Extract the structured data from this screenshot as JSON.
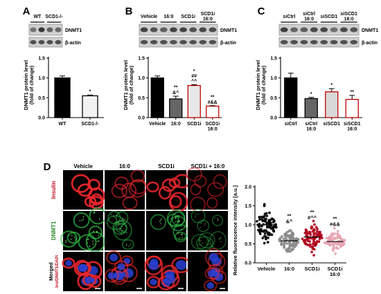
{
  "panels": {
    "A": {
      "letter": "A",
      "blot": {
        "headers": [
          "WT",
          "SCD1-/-"
        ],
        "labels": [
          "DNMT1",
          "β-actin"
        ]
      },
      "chart_data": {
        "type": "bar",
        "categories": [
          "WT",
          "SCD1-/-"
        ],
        "values": [
          1.0,
          0.55
        ],
        "errors": [
          0.05,
          0.02
        ],
        "sig": [
          "",
          "*"
        ],
        "fills": [
          "#000000",
          "#f2f2f2"
        ],
        "ylabel": "DNMT1 protein level\n(fold of change)",
        "ylim": [
          0,
          1.5
        ],
        "yticks": [
          "0.0",
          "0.5",
          "1.0",
          "1.5"
        ]
      }
    },
    "B": {
      "letter": "B",
      "blot": {
        "headers": [
          "Vehicle",
          "16:0",
          "SCD1i",
          "SCD1i\n16:0"
        ],
        "labels": [
          "DNMT1",
          "β-actin"
        ]
      },
      "chart_data": {
        "type": "bar",
        "categories": [
          "Vehicle",
          "16:0",
          "SCD1i",
          "SCD1i\n16:0"
        ],
        "values": [
          1.0,
          0.47,
          0.81,
          0.29
        ],
        "errors": [
          0.05,
          0.07,
          0.02,
          0.01
        ],
        "sig": [
          "",
          "**\n&^",
          "*\n##\n^^",
          "**\n#&&"
        ],
        "fills": [
          "#000000",
          "#666666",
          "#e8e8e8",
          "#ffffff"
        ],
        "strokes": [
          "#000000",
          "#000000",
          "#c00000",
          "#c00000"
        ],
        "ylabel": "DNMT1 protein level\n(fold of change)",
        "ylim": [
          0,
          1.5
        ],
        "yticks": [
          "0.0",
          "0.5",
          "1.0",
          "1.5"
        ]
      }
    },
    "C": {
      "letter": "C",
      "blot": {
        "headers": [
          "siCtrl",
          "siCtrl\n16:0",
          "siSCD1",
          "siSCD1\n16:0"
        ],
        "labels": [
          "DNMT1",
          "β-actin"
        ]
      },
      "chart_data": {
        "type": "bar",
        "categories": [
          "siCtrl",
          "siCtrl\n16:0",
          "siSCD1",
          "siSCD1\n16:0"
        ],
        "values": [
          1.0,
          0.48,
          0.65,
          0.46
        ],
        "errors": [
          0.12,
          0.03,
          0.08,
          0.1
        ],
        "sig": [
          "",
          "*",
          "*",
          "**"
        ],
        "fills": [
          "#000000",
          "#666666",
          "#d9d9d9",
          "#ffffff"
        ],
        "strokes": [
          "#000000",
          "#000000",
          "#c00000",
          "#c00000"
        ],
        "ylabel": "DNMT1 protein level\n(fold of change)",
        "ylim": [
          0,
          1.5
        ],
        "yticks": [
          "0.0",
          "0.5",
          "1.0",
          "1.5"
        ]
      }
    },
    "D": {
      "letter": "D",
      "micro": {
        "cols": [
          "Vehicle",
          "16:0",
          "SCD1i",
          "SCD1i + 16:0"
        ],
        "rows": [
          {
            "label": "Insulin",
            "color": "#e8262e",
            "intensity": [
              0.95,
              0.45,
              0.85,
              0.35
            ],
            "nuclei": false
          },
          {
            "label": "DNMT1",
            "color": "#2fc24a",
            "intensity": [
              0.55,
              0.3,
              0.4,
              0.2
            ],
            "nuclei": false
          },
          {
            "label": "Merged",
            "sub": "Ins/DNMT1/DAPI",
            "color": "#e8262e",
            "intensity": [
              0.9,
              0.5,
              0.8,
              0.4
            ],
            "nuclei": true
          }
        ]
      },
      "chart_data": {
        "type": "scatter",
        "categories": [
          "Vehicle",
          "16:0",
          "SCD1i",
          "SCD1i\n16:0"
        ],
        "medians": [
          1.0,
          0.58,
          0.68,
          0.56
        ],
        "ranges": [
          [
            0.48,
            1.6
          ],
          [
            0.3,
            1.0
          ],
          [
            0.2,
            1.1
          ],
          [
            0.2,
            0.93
          ]
        ],
        "colors": [
          "#000000",
          "#8a8a8a",
          "#b0001a",
          "#e6a5b0"
        ],
        "sig": [
          "",
          "**\n&^",
          "**\n#^^",
          "**\n#&&"
        ],
        "ylabel": "Relative fluorescence intensity [a.u.]",
        "ylim": [
          0,
          2.0
        ],
        "yticks": [
          "0.0",
          "0.5",
          "1.0",
          "1.5",
          "2.0"
        ]
      }
    }
  }
}
